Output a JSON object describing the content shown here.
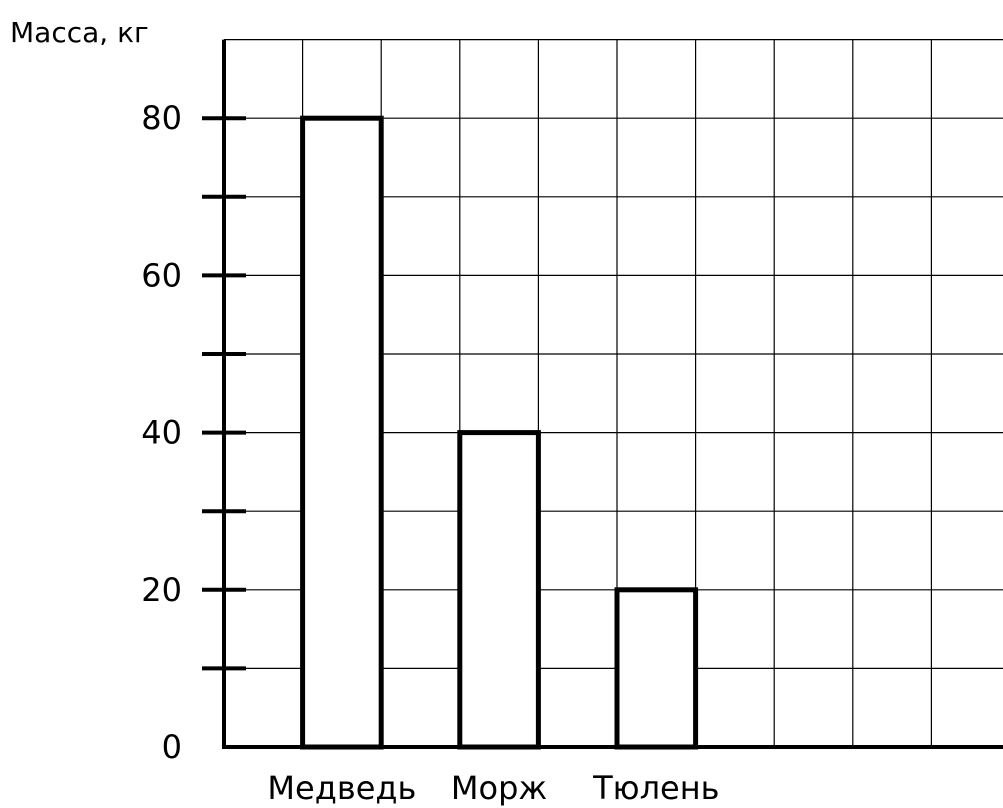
{
  "chart_data": {
    "type": "bar",
    "title": "",
    "xlabel": "",
    "ylabel": "Масса, кг",
    "categories": [
      "Медведь",
      "Морж",
      "Тюлень"
    ],
    "values": [
      80,
      40,
      20
    ],
    "ylim": [
      0,
      80
    ],
    "yticks": [
      0,
      20,
      40,
      60,
      80
    ],
    "minor_tick_step": 10,
    "grid": true,
    "legend": "none",
    "bar_fill": "#ffffff",
    "bar_stroke": "#000000"
  }
}
